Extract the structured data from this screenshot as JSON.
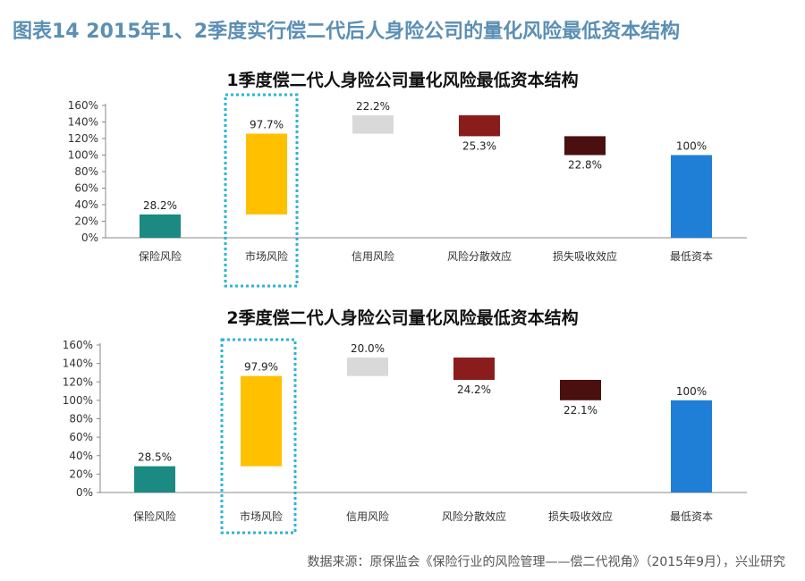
{
  "figure_title": "图表14   2015年1、2季度实行偿二代后人身险公司的量化风险最低资本结构",
  "source_note": "数据来源：原保监会《保险行业的风险管理——偿二代视角》（2015年9月），兴业研究",
  "colors": {
    "title": "#5b8fb4",
    "insurance_risk": "#1a8a82",
    "market_risk": "#ffc000",
    "credit_risk": "#d9d9d9",
    "diversification": "#8b1c1c",
    "loss_absorption": "#4a0f0f",
    "min_capital": "#1f7fd6",
    "highlight_box": "#2cb3d9"
  },
  "chart_data": [
    {
      "type": "bar",
      "subtype": "waterfall",
      "title": "1季度偿二代人身险公司量化风险最低资本结构",
      "categories": [
        "保险风险",
        "市场风险",
        "信用风险",
        "风险分散效应",
        "损失吸收效应",
        "最低资本"
      ],
      "values": [
        28.2,
        97.7,
        22.2,
        -25.3,
        -22.8,
        100
      ],
      "data_labels": [
        "28.2%",
        "97.7%",
        "22.2%",
        "25.3%",
        "22.8%",
        "100%"
      ],
      "yticks": [
        "0%",
        "20%",
        "40%",
        "60%",
        "80%",
        "100%",
        "120%",
        "140%",
        "160%"
      ],
      "ylim": [
        0,
        160
      ],
      "highlight_category": "市场风险"
    },
    {
      "type": "bar",
      "subtype": "waterfall",
      "title": "2季度偿二代人身险公司量化风险最低资本结构",
      "categories": [
        "保险风险",
        "市场风险",
        "信用风险",
        "风险分散效应",
        "损失吸收效应",
        "最低资本"
      ],
      "values": [
        28.5,
        97.9,
        20.0,
        -24.2,
        -22.1,
        100
      ],
      "data_labels": [
        "28.5%",
        "97.9%",
        "20.0%",
        "24.2%",
        "22.1%",
        "100%"
      ],
      "yticks": [
        "0%",
        "20%",
        "40%",
        "60%",
        "80%",
        "100%",
        "120%",
        "140%",
        "160%"
      ],
      "ylim": [
        0,
        160
      ],
      "highlight_category": "市场风险"
    }
  ]
}
